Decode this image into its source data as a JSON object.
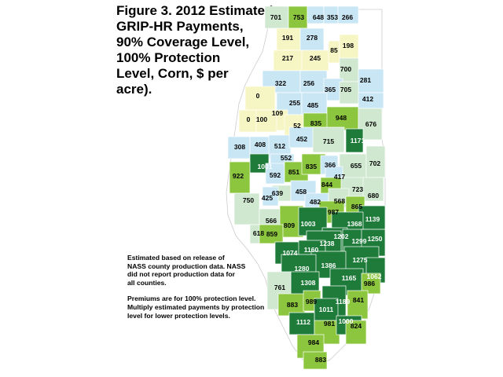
{
  "title_lines": [
    "Figure 3. 2012 Estimated",
    "GRIP-HR Payments,",
    "90% Coverage Level,",
    "100% Protection",
    "Level, Corn, $ per",
    "acre)."
  ],
  "notes": [
    [
      "Estimated based on release of",
      "NASS county production data.  NASS",
      "did not report production data for",
      "all counties."
    ],
    [
      "Premiums are for 100% protection level.",
      "Multiply estimated payments by protection",
      "level for lower protection levels."
    ]
  ],
  "colors": {
    "very_low": "#f6f6c4",
    "low": "#c9e6f4",
    "mid": "#cfe8cf",
    "high": "#8cc63f",
    "very_high": "#1e7b3a",
    "no_data": "#ffffff",
    "label_dark": "#000000",
    "label_light": "#ffffff"
  },
  "map_data": {
    "type": "choropleth",
    "region": "Illinois counties",
    "unit": "$ per acre",
    "counties": [
      {
        "value": "701",
        "class": "mid"
      },
      {
        "value": "753",
        "class": "high"
      },
      {
        "value": "648",
        "class": "low"
      },
      {
        "value": "353",
        "class": "low"
      },
      {
        "value": "266",
        "class": "low"
      },
      {
        "value": "191",
        "class": "very_low"
      },
      {
        "value": "278",
        "class": "low"
      },
      {
        "value": "217",
        "class": "very_low"
      },
      {
        "value": "245",
        "class": "very_low"
      },
      {
        "value": "85",
        "class": "very_low"
      },
      {
        "value": "198",
        "class": "very_low"
      },
      {
        "value": "700",
        "class": "mid"
      },
      {
        "value": "281",
        "class": "low"
      },
      {
        "value": "322",
        "class": "low"
      },
      {
        "value": "256",
        "class": "low"
      },
      {
        "value": "365",
        "class": "low"
      },
      {
        "value": "705",
        "class": "mid"
      },
      {
        "value": "412",
        "class": "low"
      },
      {
        "value": "0",
        "class": "very_low"
      },
      {
        "value": "255",
        "class": "low"
      },
      {
        "value": "485",
        "class": "low"
      },
      {
        "value": "109",
        "class": "very_low"
      },
      {
        "value": "0",
        "class": "very_low"
      },
      {
        "value": "100",
        "class": "very_low"
      },
      {
        "value": "52",
        "class": "very_low"
      },
      {
        "value": "835",
        "class": "high"
      },
      {
        "value": "948",
        "class": "high"
      },
      {
        "value": "676",
        "class": "mid"
      },
      {
        "value": "1171",
        "class": "very_high"
      },
      {
        "value": "308",
        "class": "low"
      },
      {
        "value": "408",
        "class": "low"
      },
      {
        "value": "512",
        "class": "low"
      },
      {
        "value": "452",
        "class": "low"
      },
      {
        "value": "715",
        "class": "mid"
      },
      {
        "value": "552",
        "class": "low"
      },
      {
        "value": "1001",
        "class": "very_high"
      },
      {
        "value": "592",
        "class": "low"
      },
      {
        "value": "851",
        "class": "high"
      },
      {
        "value": "835",
        "class": "high"
      },
      {
        "value": "366",
        "class": "low"
      },
      {
        "value": "655",
        "class": "mid"
      },
      {
        "value": "702",
        "class": "mid"
      },
      {
        "value": "922",
        "class": "high"
      },
      {
        "value": "417",
        "class": "low"
      },
      {
        "value": "844",
        "class": "high"
      },
      {
        "value": "723",
        "class": "mid"
      },
      {
        "value": "680",
        "class": "mid"
      },
      {
        "value": "639",
        "class": "mid"
      },
      {
        "value": "458",
        "class": "low"
      },
      {
        "value": "425",
        "class": "low"
      },
      {
        "value": "482",
        "class": "low"
      },
      {
        "value": "568",
        "class": "mid"
      },
      {
        "value": "750",
        "class": "mid"
      },
      {
        "value": "987",
        "class": "high"
      },
      {
        "value": "865",
        "class": "high"
      },
      {
        "value": "1139",
        "class": "very_high"
      },
      {
        "value": "566",
        "class": "mid"
      },
      {
        "value": "809",
        "class": "high"
      },
      {
        "value": "1003",
        "class": "very_high"
      },
      {
        "value": "1368",
        "class": "very_high"
      },
      {
        "value": "618",
        "class": "mid"
      },
      {
        "value": "859",
        "class": "high"
      },
      {
        "value": "1202",
        "class": "very_high"
      },
      {
        "value": "1299",
        "class": "very_high"
      },
      {
        "value": "1250",
        "class": "very_high"
      },
      {
        "value": "1238",
        "class": "very_high"
      },
      {
        "value": "1074",
        "class": "very_high"
      },
      {
        "value": "1160",
        "class": "very_high"
      },
      {
        "value": "1275",
        "class": "very_high"
      },
      {
        "value": "1386",
        "class": "very_high"
      },
      {
        "value": "1280",
        "class": "very_high"
      },
      {
        "value": "1165",
        "class": "very_high"
      },
      {
        "value": "1062",
        "class": "very_high"
      },
      {
        "value": "986",
        "class": "high"
      },
      {
        "value": "1308",
        "class": "very_high"
      },
      {
        "value": "761",
        "class": "mid"
      },
      {
        "value": "883",
        "class": "high"
      },
      {
        "value": "989",
        "class": "high"
      },
      {
        "value": "1189",
        "class": "very_high"
      },
      {
        "value": "841",
        "class": "high"
      },
      {
        "value": "1011",
        "class": "very_high"
      },
      {
        "value": "1112",
        "class": "very_high"
      },
      {
        "value": "981",
        "class": "high"
      },
      {
        "value": "1000",
        "class": "very_high"
      },
      {
        "value": "824",
        "class": "high"
      },
      {
        "value": "984",
        "class": "high"
      },
      {
        "value": "883",
        "class": "high"
      }
    ]
  }
}
